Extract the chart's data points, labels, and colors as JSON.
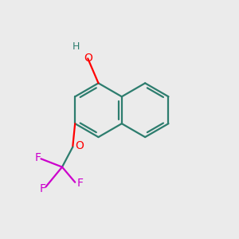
{
  "bg_color": "#ebebeb",
  "bond_color": "#2d7d6e",
  "bond_width": 1.6,
  "atom_colors": {
    "O": "#ff0000",
    "F": "#cc00cc",
    "H": "#2d7d6e"
  },
  "font_size_O": 10,
  "font_size_F": 10,
  "font_size_H": 9,
  "fig_size": [
    3.0,
    3.0
  ],
  "dpi": 100
}
